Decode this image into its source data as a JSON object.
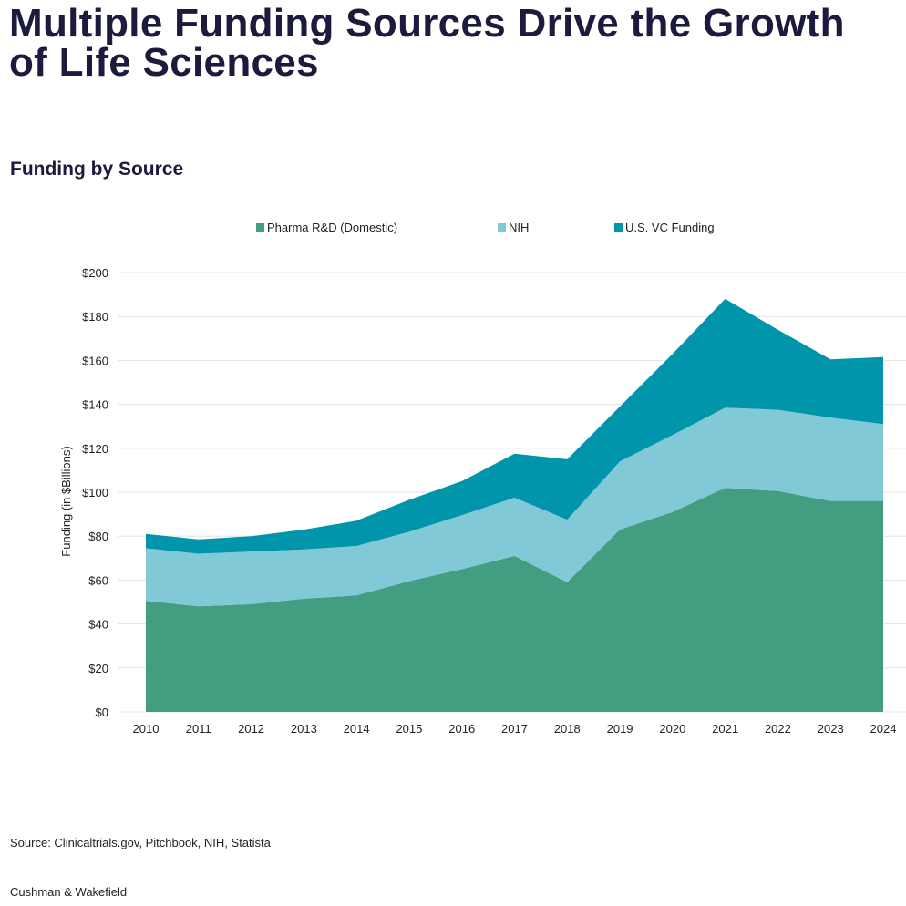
{
  "title_line1": "Multiple Funding Sources Drive the Growth",
  "title_line2": "of Life Sciences",
  "subtitle": "Funding by Source",
  "source": "Source: Clinicaltrials.gov, Pitchbook, NIH, Statista",
  "brand": "Cushman & Wakefield",
  "chart_data": {
    "type": "area",
    "stacked": true,
    "ylabel": "Funding (in $Billions)",
    "xlabel": "",
    "ylim": [
      0,
      200
    ],
    "yticks": [
      "$0",
      "$20",
      "$40",
      "$60",
      "$80",
      "$100",
      "$120",
      "$140",
      "$160",
      "$180",
      "$200"
    ],
    "ytick_values": [
      0,
      20,
      40,
      60,
      80,
      100,
      120,
      140,
      160,
      180,
      200
    ],
    "x": [
      "2010",
      "2011",
      "2012",
      "2013",
      "2014",
      "2015",
      "2016",
      "2017",
      "2018",
      "2019",
      "2020",
      "2021",
      "2022",
      "2023",
      "2024"
    ],
    "grid": "horizontal",
    "legend": "top-center",
    "series": [
      {
        "name": "Pharma R&D (Domestic)",
        "color": "#429d81",
        "values": [
          50.5,
          48,
          49,
          51.5,
          53,
          59.5,
          65,
          71,
          59,
          83,
          91,
          102,
          100.5,
          96,
          96
        ]
      },
      {
        "name": "NIH",
        "color": "#81c9d7",
        "values": [
          24,
          24,
          24,
          22.5,
          22.5,
          22.5,
          24.5,
          26.5,
          28.5,
          31,
          35,
          36.5,
          37,
          38,
          35
        ]
      },
      {
        "name": "U.S. VC Funding",
        "color": "#0095ab",
        "values": [
          6.5,
          6.5,
          7,
          9,
          11.5,
          14.5,
          15.5,
          20,
          27.5,
          25,
          37,
          49.5,
          36.5,
          26.5,
          30.5
        ]
      }
    ]
  }
}
